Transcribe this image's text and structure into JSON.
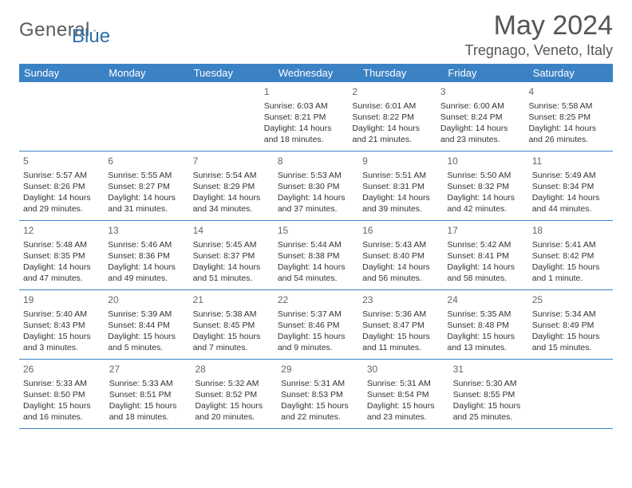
{
  "logo": {
    "gray_text": "General",
    "blue_text": "Blue"
  },
  "title": "May 2024",
  "location": "Tregnago, Veneto, Italy",
  "day_names": [
    "Sunday",
    "Monday",
    "Tuesday",
    "Wednesday",
    "Thursday",
    "Friday",
    "Saturday"
  ],
  "colors": {
    "header_bg": "#3b82c4",
    "header_text": "#ffffff",
    "border": "#3b82c4",
    "body_text": "#333333",
    "title_text": "#555555",
    "logo_gray": "#5b5b5b",
    "logo_blue": "#2f6ea8",
    "background": "#ffffff"
  },
  "fonts": {
    "family": "Arial",
    "title_size_pt": 26,
    "location_size_pt": 14,
    "dayheader_size_pt": 10,
    "cell_size_pt": 8
  },
  "weeks": [
    [
      null,
      null,
      null,
      {
        "n": "1",
        "sr": "6:03 AM",
        "ss": "8:21 PM",
        "dl": "14 hours and 18 minutes."
      },
      {
        "n": "2",
        "sr": "6:01 AM",
        "ss": "8:22 PM",
        "dl": "14 hours and 21 minutes."
      },
      {
        "n": "3",
        "sr": "6:00 AM",
        "ss": "8:24 PM",
        "dl": "14 hours and 23 minutes."
      },
      {
        "n": "4",
        "sr": "5:58 AM",
        "ss": "8:25 PM",
        "dl": "14 hours and 26 minutes."
      }
    ],
    [
      {
        "n": "5",
        "sr": "5:57 AM",
        "ss": "8:26 PM",
        "dl": "14 hours and 29 minutes."
      },
      {
        "n": "6",
        "sr": "5:55 AM",
        "ss": "8:27 PM",
        "dl": "14 hours and 31 minutes."
      },
      {
        "n": "7",
        "sr": "5:54 AM",
        "ss": "8:29 PM",
        "dl": "14 hours and 34 minutes."
      },
      {
        "n": "8",
        "sr": "5:53 AM",
        "ss": "8:30 PM",
        "dl": "14 hours and 37 minutes."
      },
      {
        "n": "9",
        "sr": "5:51 AM",
        "ss": "8:31 PM",
        "dl": "14 hours and 39 minutes."
      },
      {
        "n": "10",
        "sr": "5:50 AM",
        "ss": "8:32 PM",
        "dl": "14 hours and 42 minutes."
      },
      {
        "n": "11",
        "sr": "5:49 AM",
        "ss": "8:34 PM",
        "dl": "14 hours and 44 minutes."
      }
    ],
    [
      {
        "n": "12",
        "sr": "5:48 AM",
        "ss": "8:35 PM",
        "dl": "14 hours and 47 minutes."
      },
      {
        "n": "13",
        "sr": "5:46 AM",
        "ss": "8:36 PM",
        "dl": "14 hours and 49 minutes."
      },
      {
        "n": "14",
        "sr": "5:45 AM",
        "ss": "8:37 PM",
        "dl": "14 hours and 51 minutes."
      },
      {
        "n": "15",
        "sr": "5:44 AM",
        "ss": "8:38 PM",
        "dl": "14 hours and 54 minutes."
      },
      {
        "n": "16",
        "sr": "5:43 AM",
        "ss": "8:40 PM",
        "dl": "14 hours and 56 minutes."
      },
      {
        "n": "17",
        "sr": "5:42 AM",
        "ss": "8:41 PM",
        "dl": "14 hours and 58 minutes."
      },
      {
        "n": "18",
        "sr": "5:41 AM",
        "ss": "8:42 PM",
        "dl": "15 hours and 1 minute."
      }
    ],
    [
      {
        "n": "19",
        "sr": "5:40 AM",
        "ss": "8:43 PM",
        "dl": "15 hours and 3 minutes."
      },
      {
        "n": "20",
        "sr": "5:39 AM",
        "ss": "8:44 PM",
        "dl": "15 hours and 5 minutes."
      },
      {
        "n": "21",
        "sr": "5:38 AM",
        "ss": "8:45 PM",
        "dl": "15 hours and 7 minutes."
      },
      {
        "n": "22",
        "sr": "5:37 AM",
        "ss": "8:46 PM",
        "dl": "15 hours and 9 minutes."
      },
      {
        "n": "23",
        "sr": "5:36 AM",
        "ss": "8:47 PM",
        "dl": "15 hours and 11 minutes."
      },
      {
        "n": "24",
        "sr": "5:35 AM",
        "ss": "8:48 PM",
        "dl": "15 hours and 13 minutes."
      },
      {
        "n": "25",
        "sr": "5:34 AM",
        "ss": "8:49 PM",
        "dl": "15 hours and 15 minutes."
      }
    ],
    [
      {
        "n": "26",
        "sr": "5:33 AM",
        "ss": "8:50 PM",
        "dl": "15 hours and 16 minutes."
      },
      {
        "n": "27",
        "sr": "5:33 AM",
        "ss": "8:51 PM",
        "dl": "15 hours and 18 minutes."
      },
      {
        "n": "28",
        "sr": "5:32 AM",
        "ss": "8:52 PM",
        "dl": "15 hours and 20 minutes."
      },
      {
        "n": "29",
        "sr": "5:31 AM",
        "ss": "8:53 PM",
        "dl": "15 hours and 22 minutes."
      },
      {
        "n": "30",
        "sr": "5:31 AM",
        "ss": "8:54 PM",
        "dl": "15 hours and 23 minutes."
      },
      {
        "n": "31",
        "sr": "5:30 AM",
        "ss": "8:55 PM",
        "dl": "15 hours and 25 minutes."
      },
      null
    ]
  ],
  "labels": {
    "sunrise": "Sunrise:",
    "sunset": "Sunset:",
    "daylight": "Daylight:"
  }
}
